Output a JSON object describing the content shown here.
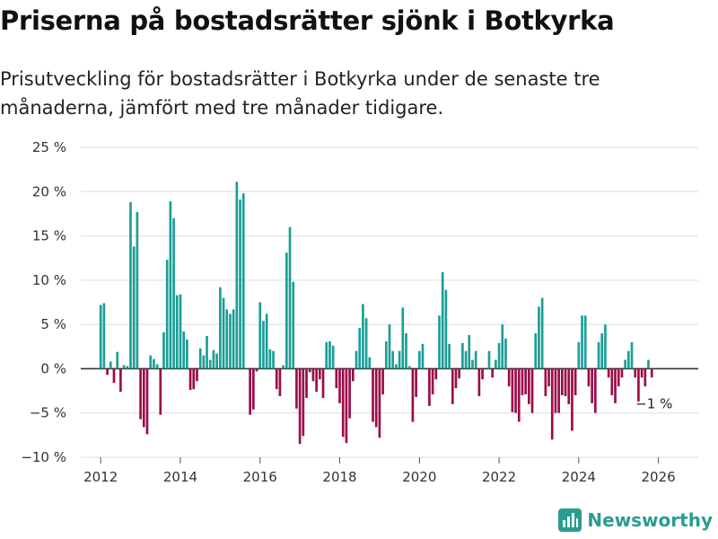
{
  "title": "Priserna på bostadsrätter sjönk i Botkyrka",
  "subtitle": "Prisutveckling för bostadsrätter i Botkyrka under de senaste tre månaderna, jämfört med tre månader tidigare.",
  "brand": {
    "name": "Newsworthy",
    "icon": "bar-chart-logo-icon",
    "color": "#2a9d8f"
  },
  "chart_data": {
    "type": "bar",
    "title": "Priserna på bostadsrätter sjönk i Botkyrka",
    "xlabel": "",
    "ylabel": "",
    "ylim": [
      -10,
      25
    ],
    "yticks": [
      -10,
      -5,
      0,
      5,
      10,
      15,
      20,
      25
    ],
    "ytick_labels": [
      "−10 %",
      "−5 %",
      "0 %",
      "5 %",
      "10 %",
      "15 %",
      "20 %",
      "25 %"
    ],
    "xlim": [
      2011.5,
      2027.0
    ],
    "xticks": [
      2012,
      2014,
      2016,
      2018,
      2020,
      2022,
      2024,
      2026
    ],
    "xtick_labels": [
      "2012",
      "2014",
      "2016",
      "2018",
      "2020",
      "2022",
      "2024",
      "2026"
    ],
    "grid": true,
    "positive_color": "#1a9e96",
    "negative_color": "#9b0b48",
    "start": {
      "year": 2012,
      "month": 1
    },
    "interval_months": 1,
    "values": [
      7.2,
      7.4,
      -0.7,
      0.8,
      -1.6,
      1.9,
      -2.6,
      0.4,
      0.3,
      18.8,
      13.8,
      17.7,
      -5.7,
      -6.6,
      -7.4,
      1.5,
      1.1,
      0.5,
      -5.2,
      4.1,
      12.3,
      18.9,
      17.0,
      8.3,
      8.4,
      4.2,
      3.3,
      -2.4,
      -2.3,
      -1.4,
      2.3,
      1.5,
      3.7,
      1.0,
      2.1,
      1.7,
      9.2,
      8.0,
      6.7,
      6.2,
      6.7,
      21.1,
      19.1,
      19.8,
      0.0,
      -5.2,
      -4.6,
      -0.3,
      7.5,
      5.4,
      6.2,
      2.2,
      2.0,
      -2.3,
      -3.1,
      0.4,
      13.1,
      16.0,
      9.8,
      -4.5,
      -8.5,
      -7.6,
      -3.3,
      -0.4,
      -1.4,
      -2.6,
      -1.2,
      -3.3,
      3.0,
      3.1,
      2.6,
      -2.2,
      -3.9,
      -7.7,
      -8.4,
      -5.6,
      -1.4,
      2.0,
      4.6,
      7.3,
      5.7,
      1.3,
      -6.0,
      -6.6,
      -7.8,
      -2.9,
      3.1,
      5.0,
      2.0,
      0.5,
      2.0,
      6.9,
      4.0,
      0.3,
      -6.0,
      -3.2,
      2.0,
      2.8,
      0.0,
      -4.2,
      -2.9,
      -1.2,
      6.0,
      10.9,
      8.9,
      2.8,
      -4.0,
      -2.2,
      -1.1,
      2.9,
      2.0,
      3.8,
      1.0,
      2.0,
      -3.1,
      -1.2,
      0.0,
      2.0,
      -1.0,
      1.0,
      2.9,
      5.0,
      3.4,
      -2.0,
      -4.9,
      -5.0,
      -6.0,
      -3.0,
      -2.9,
      -4.0,
      -5.0,
      4.0,
      7.0,
      8.0,
      -3.1,
      -2.0,
      -8.0,
      -5.0,
      -5.0,
      -3.0,
      -3.1,
      -4.0,
      -7.0,
      -3.0,
      3.0,
      6.0,
      6.0,
      -2.0,
      -3.9,
      -5.0,
      3.0,
      4.0,
      5.0,
      -1.0,
      -3.0,
      -3.9,
      -2.0,
      -1.0,
      1.0,
      2.0,
      3.0,
      -1.0,
      -3.7,
      -1.0,
      -2.0,
      1.0,
      -1.0
    ],
    "annotations": [
      {
        "label": "−1 %",
        "value": -1.0,
        "target": "last"
      }
    ]
  }
}
